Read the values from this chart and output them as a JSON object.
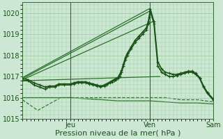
{
  "title": "",
  "xlabel": "Pression niveau de la mer( hPa )",
  "bg_color": "#cce8d4",
  "grid_color": "#99cc99",
  "ylim": [
    1015.0,
    1020.5
  ],
  "yticks": [
    1015,
    1016,
    1017,
    1018,
    1019,
    1020
  ],
  "figsize": [
    3.2,
    2.0
  ],
  "dpi": 100,
  "series": [
    {
      "name": "flat_bottom_dashed",
      "x": [
        0.0,
        0.08,
        0.12,
        0.16,
        0.2,
        0.25,
        0.33,
        0.42,
        0.5,
        0.58,
        0.67,
        0.75,
        0.83,
        0.92,
        1.0
      ],
      "y": [
        1015.9,
        1015.4,
        1015.6,
        1015.8,
        1016.0,
        1016.0,
        1016.0,
        1016.0,
        1016.0,
        1016.0,
        1016.0,
        1016.0,
        1015.9,
        1015.9,
        1015.8
      ],
      "style": "--",
      "lw": 0.9,
      "color": "#2d6e2d",
      "marker": null,
      "ms": 0,
      "zorder": 1
    },
    {
      "name": "flat_bottom_solid",
      "x": [
        0.0,
        0.08,
        0.12,
        0.16,
        0.2,
        0.25,
        0.33,
        0.42,
        0.5,
        0.58,
        0.67,
        0.75,
        0.83,
        0.92,
        1.0
      ],
      "y": [
        1016.0,
        1016.0,
        1016.0,
        1016.0,
        1016.0,
        1016.0,
        1015.95,
        1015.9,
        1015.85,
        1015.85,
        1015.85,
        1015.8,
        1015.75,
        1015.75,
        1015.7
      ],
      "style": "-",
      "lw": 0.9,
      "color": "#2d6e2d",
      "marker": null,
      "ms": 0,
      "zorder": 1
    },
    {
      "name": "straight_line_low",
      "x": [
        0.0,
        0.72
      ],
      "y": [
        1016.8,
        1017.0
      ],
      "style": "-",
      "lw": 0.9,
      "color": "#2d6e2d",
      "marker": null,
      "ms": 0,
      "zorder": 2
    },
    {
      "name": "straight_line_mid",
      "x": [
        0.0,
        0.685
      ],
      "y": [
        1016.85,
        1019.6
      ],
      "style": "-",
      "lw": 0.9,
      "color": "#2d6e2d",
      "marker": null,
      "ms": 0,
      "zorder": 2
    },
    {
      "name": "straight_line_high",
      "x": [
        0.0,
        0.67
      ],
      "y": [
        1016.9,
        1020.1
      ],
      "style": "-",
      "lw": 0.9,
      "color": "#2d6e2d",
      "marker": null,
      "ms": 0,
      "zorder": 2
    },
    {
      "name": "straight_line_high2",
      "x": [
        0.0,
        0.665
      ],
      "y": [
        1016.95,
        1020.2
      ],
      "style": "-",
      "lw": 0.9,
      "color": "#2d6e2d",
      "marker": null,
      "ms": 0,
      "zorder": 2
    },
    {
      "name": "curve_with_markers_1",
      "x": [
        0.0,
        0.03,
        0.06,
        0.09,
        0.12,
        0.14,
        0.17,
        0.19,
        0.22,
        0.25,
        0.27,
        0.29,
        0.31,
        0.33,
        0.35,
        0.37,
        0.39,
        0.41,
        0.43,
        0.44,
        0.46,
        0.47,
        0.48,
        0.49,
        0.5,
        0.51,
        0.52,
        0.53,
        0.54,
        0.55,
        0.57,
        0.59,
        0.61,
        0.63,
        0.65,
        0.66,
        0.67,
        0.69,
        0.71,
        0.73,
        0.75,
        0.77,
        0.79,
        0.81,
        0.83,
        0.85,
        0.87,
        0.89,
        0.91,
        0.93,
        0.95,
        0.97,
        1.0
      ],
      "y": [
        1016.8,
        1016.8,
        1016.6,
        1016.5,
        1016.4,
        1016.5,
        1016.5,
        1016.6,
        1016.6,
        1016.6,
        1016.65,
        1016.7,
        1016.7,
        1016.7,
        1016.65,
        1016.6,
        1016.55,
        1016.5,
        1016.55,
        1016.6,
        1016.7,
        1016.75,
        1016.8,
        1016.85,
        1016.9,
        1017.0,
        1017.2,
        1017.5,
        1017.8,
        1018.0,
        1018.3,
        1018.6,
        1018.8,
        1019.0,
        1019.2,
        1019.5,
        1020.1,
        1019.5,
        1017.5,
        1017.2,
        1017.1,
        1017.0,
        1017.0,
        1017.05,
        1017.1,
        1017.15,
        1017.2,
        1017.2,
        1017.1,
        1016.9,
        1016.5,
        1016.2,
        1015.9
      ],
      "style": "-",
      "lw": 1.2,
      "color": "#1a5218",
      "marker": "+",
      "ms": 3.5,
      "zorder": 5
    },
    {
      "name": "curve_with_markers_2",
      "x": [
        0.0,
        0.03,
        0.06,
        0.09,
        0.12,
        0.14,
        0.17,
        0.19,
        0.22,
        0.25,
        0.27,
        0.29,
        0.31,
        0.33,
        0.35,
        0.37,
        0.39,
        0.41,
        0.43,
        0.44,
        0.46,
        0.47,
        0.48,
        0.49,
        0.5,
        0.51,
        0.52,
        0.53,
        0.54,
        0.55,
        0.57,
        0.59,
        0.61,
        0.63,
        0.65,
        0.66,
        0.665,
        0.67,
        0.69,
        0.71,
        0.73,
        0.75,
        0.77,
        0.79,
        0.81,
        0.83,
        0.85,
        0.87,
        0.89,
        0.91,
        0.93,
        0.95,
        0.97,
        1.0
      ],
      "y": [
        1016.9,
        1016.85,
        1016.7,
        1016.6,
        1016.5,
        1016.55,
        1016.55,
        1016.65,
        1016.65,
        1016.65,
        1016.7,
        1016.75,
        1016.75,
        1016.75,
        1016.7,
        1016.65,
        1016.6,
        1016.55,
        1016.6,
        1016.65,
        1016.75,
        1016.8,
        1016.85,
        1016.9,
        1016.95,
        1017.1,
        1017.3,
        1017.6,
        1017.9,
        1018.1,
        1018.4,
        1018.7,
        1018.9,
        1019.1,
        1019.3,
        1019.6,
        1019.8,
        1020.2,
        1019.6,
        1017.7,
        1017.35,
        1017.2,
        1017.15,
        1017.1,
        1017.1,
        1017.15,
        1017.2,
        1017.25,
        1017.25,
        1017.15,
        1016.95,
        1016.55,
        1016.25,
        1015.95
      ],
      "style": "-",
      "lw": 1.2,
      "color": "#1a5218",
      "marker": "+",
      "ms": 3.5,
      "zorder": 5
    }
  ],
  "vline_positions": [
    0.25,
    0.67,
    1.0
  ],
  "vline_labels": [
    "Jeu",
    "Ven",
    "Sam"
  ],
  "vline_color": "#336633",
  "xlabel_fontsize": 8,
  "tick_fontsize": 7,
  "tick_color": "#1a5218"
}
